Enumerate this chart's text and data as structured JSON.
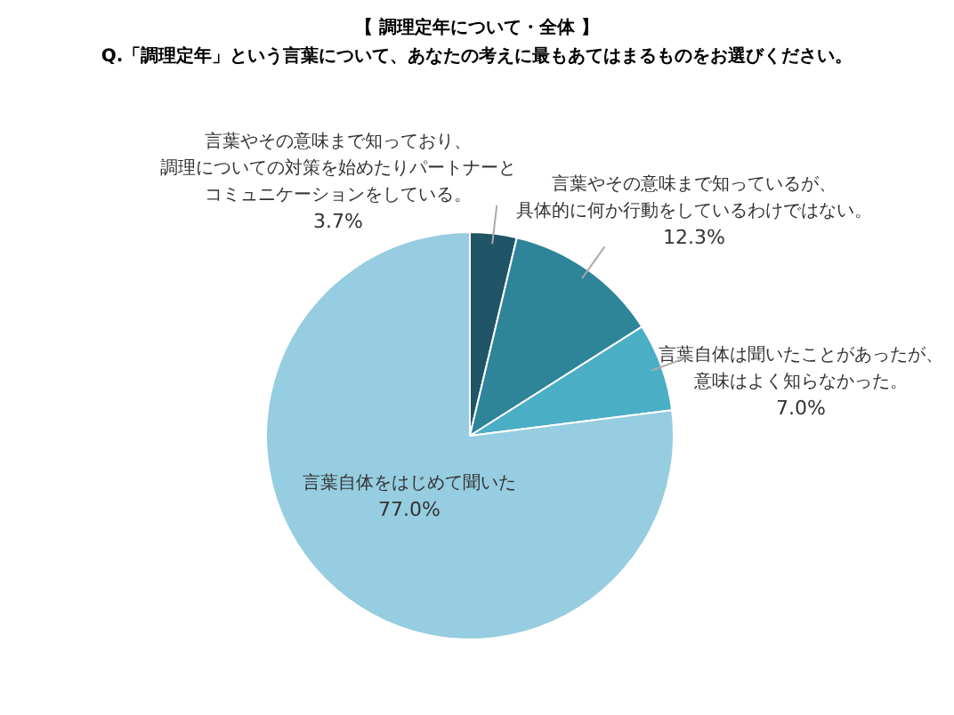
{
  "chart_data": {
    "type": "pie",
    "title": "【 調理定年について・全体 】",
    "subtitle": "Q.「調理定年」という言葉について、あなたの考えに最もあてはまるものをお選びください。",
    "categories": [
      "言葉やその意味まで知っており、調理についての対策を始めたりパートナーとコミュニケーションをしている。",
      "言葉やその意味まで知っているが、具体的に何か行動をしているわけではない。",
      "言葉自体は聞いたことがあったが、意味はよく知らなかった。",
      "言葉自体をはじめて聞いた"
    ],
    "values": [
      3.7,
      12.3,
      7.0,
      77.0
    ],
    "colors": [
      "#1f5566",
      "#2e8499",
      "#4aaec5",
      "#96cde0"
    ],
    "value_labels": [
      "3.7%",
      "12.3%",
      "7.0%",
      "77.0%"
    ]
  }
}
